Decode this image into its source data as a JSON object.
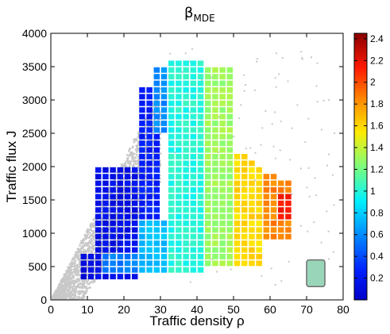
{
  "chart_data": {
    "type": "heatmap",
    "title": "β",
    "title_subscript": "MDE",
    "xlabel": "Traffic density ρ",
    "ylabel": "Traffic flux J",
    "xlim": [
      0,
      80
    ],
    "ylim": [
      0,
      4000
    ],
    "xticks": [
      "0",
      "10",
      "20",
      "30",
      "40",
      "50",
      "60",
      "70",
      "80"
    ],
    "yticks": [
      "0",
      "500",
      "1000",
      "1500",
      "2000",
      "2500",
      "3000",
      "3500",
      "4000"
    ],
    "grid": false,
    "colorbar": {
      "colormap": "jet",
      "range": [
        0,
        2.45
      ],
      "ticks": [
        "0.2",
        "0.4",
        "0.6",
        "0.8",
        "1",
        "1.2",
        "1.4",
        "1.6",
        "1.8",
        "2",
        "2.2",
        "2.4"
      ]
    },
    "cell_size": {
      "density": 2,
      "flux": 100
    },
    "cells": [
      {
        "density_range": [
          8,
          12
        ],
        "flux_range": [
          300,
          700
        ],
        "beta": 0.1
      },
      {
        "density_range": [
          12,
          24
        ],
        "flux_range": [
          300,
          2000
        ],
        "beta": 0.15
      },
      {
        "density_range": [
          24,
          30
        ],
        "flux_range": [
          700,
          3200
        ],
        "beta": 0.25
      },
      {
        "density_range": [
          14,
          24
        ],
        "flux_range": [
          400,
          700
        ],
        "beta": 0.55
      },
      {
        "density_range": [
          24,
          32
        ],
        "flux_range": [
          400,
          1200
        ],
        "beta": 0.75
      },
      {
        "density_range": [
          28,
          34
        ],
        "flux_range": [
          2500,
          3500
        ],
        "beta": 0.6
      },
      {
        "density_range": [
          32,
          42
        ],
        "flux_range": [
          400,
          3600
        ],
        "beta": 1.0
      },
      {
        "density_range": [
          42,
          50
        ],
        "flux_range": [
          500,
          3500
        ],
        "beta": 1.3
      },
      {
        "density_range": [
          50,
          58
        ],
        "flux_range": [
          500,
          2200
        ],
        "beta": 1.6
      },
      {
        "density_range": [
          58,
          66
        ],
        "flux_range": [
          900,
          1900
        ],
        "beta": 1.85
      },
      {
        "density_range": [
          62,
          66
        ],
        "flux_range": [
          1200,
          1600
        ],
        "beta": 2.15
      }
    ],
    "background_scatter": {
      "color": "#c8c8c8",
      "description": "gray points covering region between origin and free-flow line up to about density 30, flux 3000"
    },
    "reference_box": {
      "density_range": [
        70,
        75
      ],
      "flux_range": [
        200,
        600
      ],
      "fill": "#99d6b9",
      "stroke": "#6e6e6e"
    }
  }
}
